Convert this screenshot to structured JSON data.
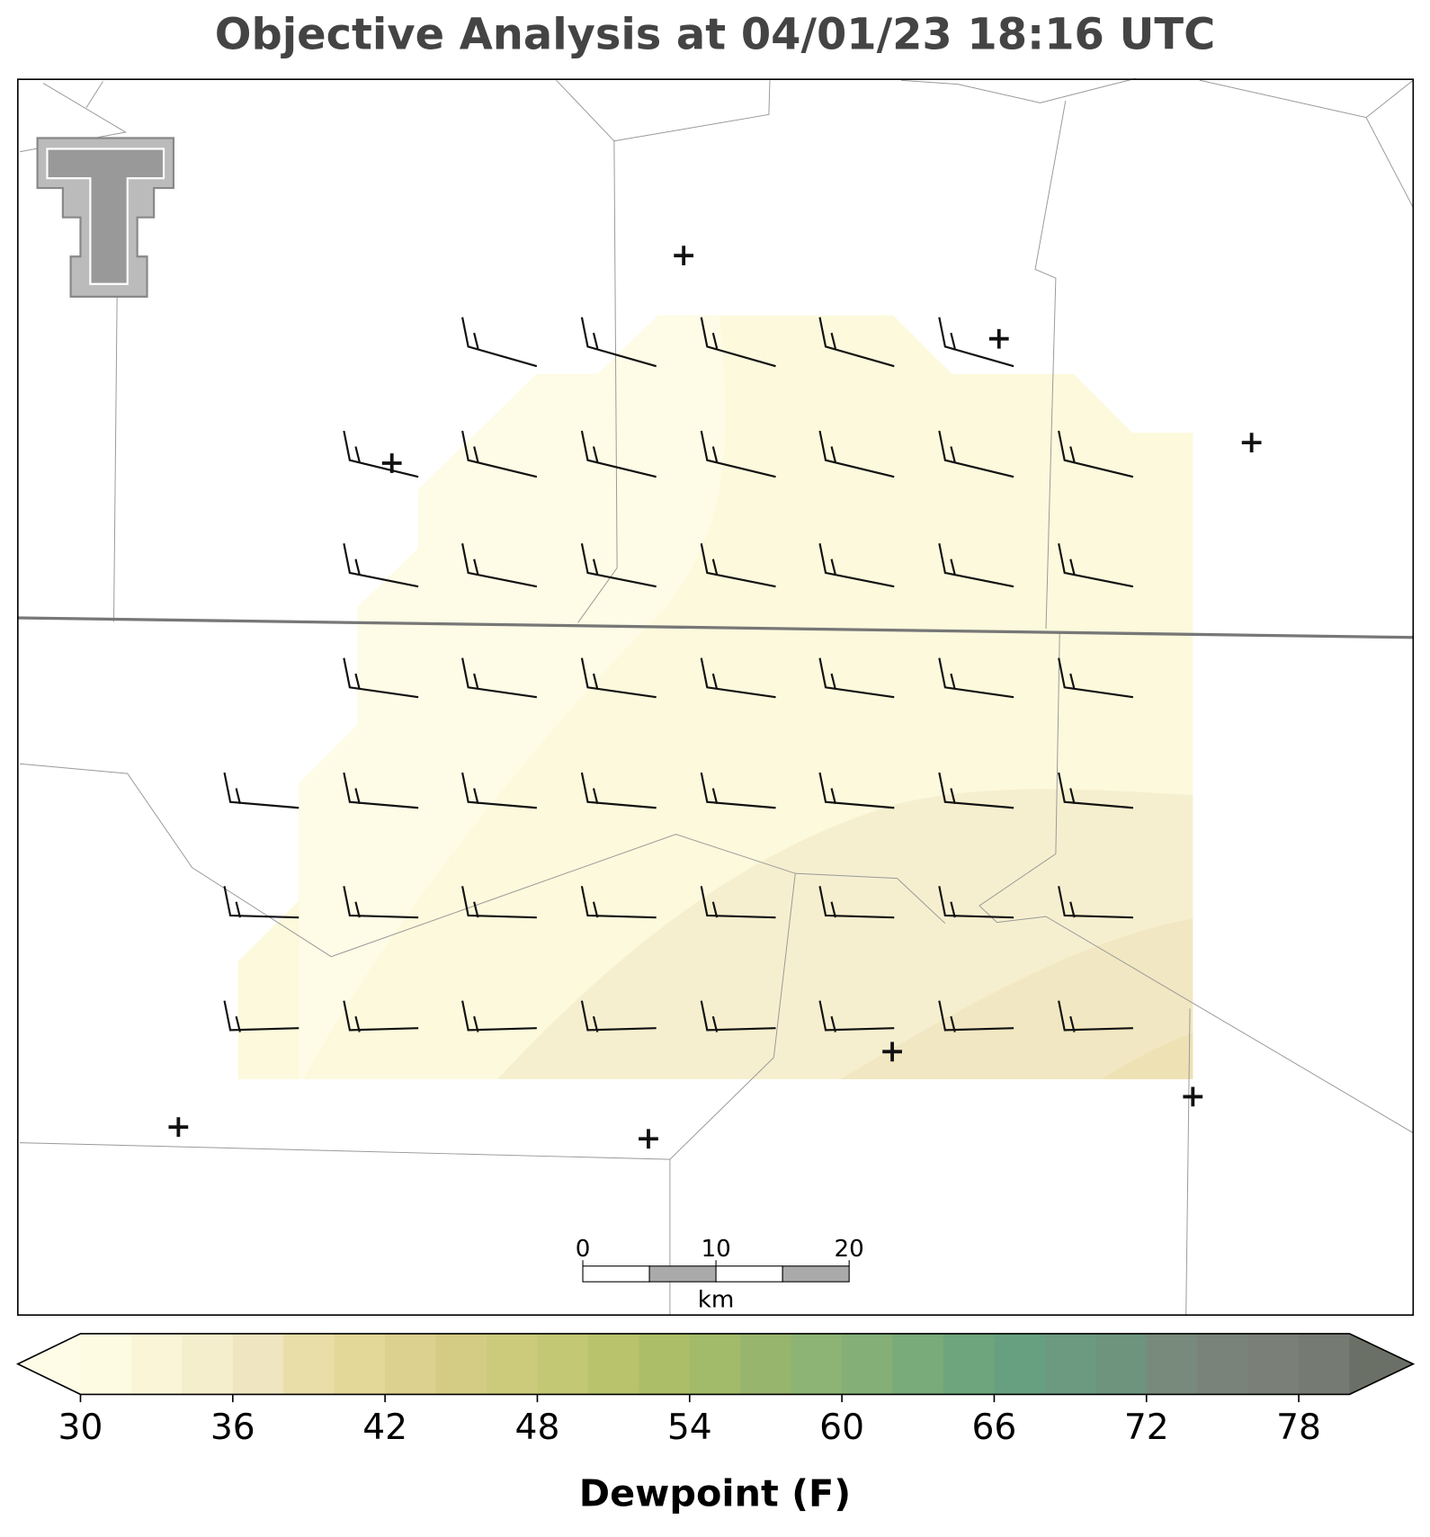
{
  "title": "Objective Analysis at 04/01/23 18:16 UTC",
  "colorbar": {
    "label": "Dewpoint (F)",
    "range": [
      30,
      80
    ],
    "ticks": [
      30,
      36,
      42,
      48,
      54,
      60,
      66,
      72,
      78
    ],
    "colors": [
      "#fefbe3",
      "#fbf5d8",
      "#f5eecd",
      "#efe5c0",
      "#e9dea8",
      "#e3d898",
      "#dcd18e",
      "#d4cc84",
      "#cccb7c",
      "#c3c874",
      "#b8c36c",
      "#acbf68",
      "#a2bb6a",
      "#98b56e",
      "#8db474",
      "#84b078",
      "#78aa7a",
      "#6ea57c",
      "#67a080",
      "#6b9a80",
      "#6f947e",
      "#778a7c",
      "#7a837a",
      "#7a7f78",
      "#757a72"
    ],
    "under_color": "#fefce6",
    "over_color": "#6b7066"
  },
  "scale_bar": {
    "ticks": [
      0,
      10,
      20
    ],
    "unit": "km"
  }
}
